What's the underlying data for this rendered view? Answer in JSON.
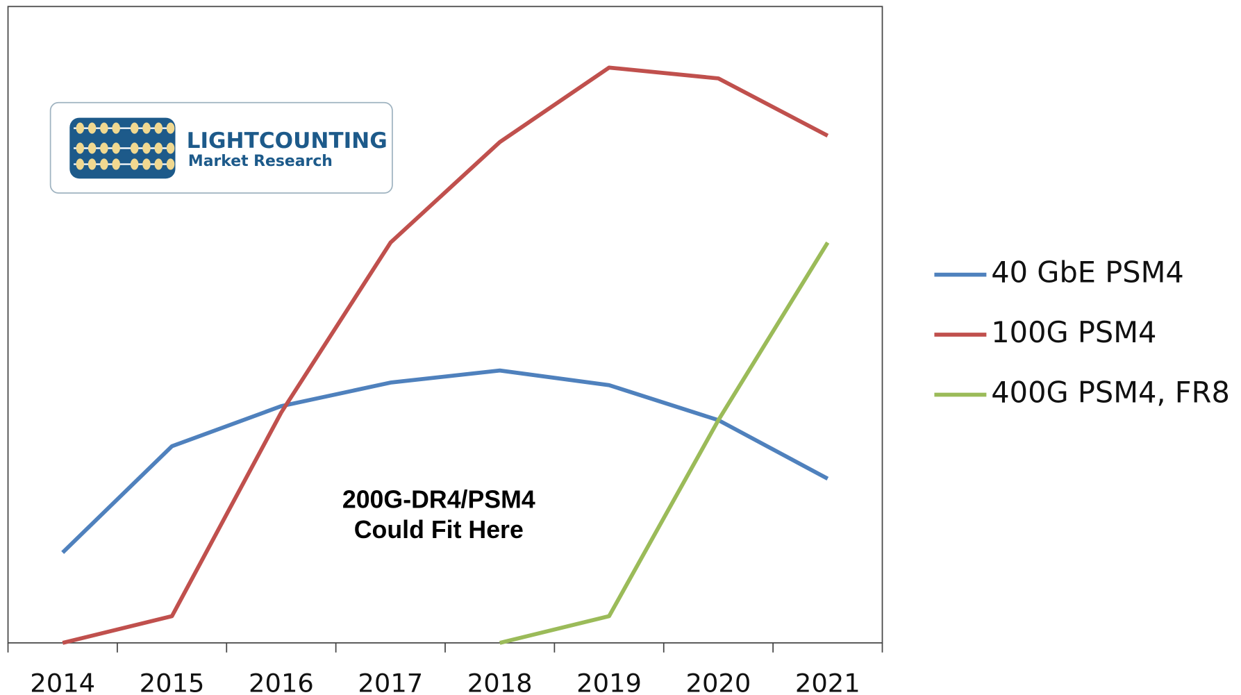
{
  "chart_data": {
    "type": "line",
    "categories": [
      "2014",
      "2015",
      "2016",
      "2017",
      "2018",
      "2019",
      "2020",
      "2021"
    ],
    "series": [
      {
        "name": "40 GbE PSM4",
        "color": "#4f81bd",
        "values": [
          14.2,
          30.9,
          37.2,
          40.9,
          42.8,
          40.5,
          35.0,
          25.8
        ]
      },
      {
        "name": "100G PSM4",
        "color": "#c0504d",
        "values": [
          0,
          4.2,
          36.2,
          62.9,
          78.7,
          90.4,
          88.7,
          79.7
        ]
      },
      {
        "name": "400G PSM4, FR8",
        "color": "#9bbb59",
        "values": [
          null,
          null,
          null,
          null,
          0,
          4.2,
          35.0,
          62.9
        ]
      }
    ],
    "ylim": [
      0,
      100
    ],
    "legend": "right",
    "annotation": [
      "200G-DR4/PSM4",
      "Could Fit Here"
    ],
    "logo": {
      "name": "LIGHTCOUNTING",
      "tagline": "Market Research"
    }
  }
}
